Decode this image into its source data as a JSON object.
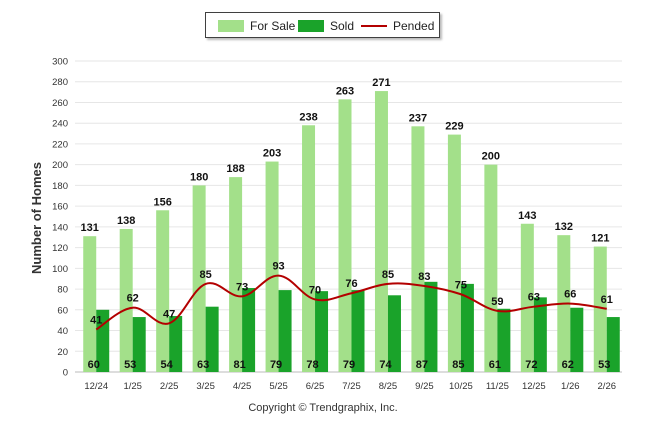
{
  "chart_data": {
    "type": "bar",
    "title": "",
    "xlabel": "",
    "ylabel": "Number of Homes",
    "ylim": [
      0,
      300
    ],
    "yticks": [
      0,
      20,
      40,
      60,
      80,
      100,
      120,
      140,
      160,
      180,
      200,
      220,
      240,
      260,
      280,
      300
    ],
    "categories": [
      "12/24",
      "1/25",
      "2/25",
      "3/25",
      "4/25",
      "5/25",
      "6/25",
      "7/25",
      "8/25",
      "9/25",
      "10/25",
      "11/25",
      "12/25",
      "1/26",
      "2/26"
    ],
    "series": [
      {
        "name": "For Sale",
        "kind": "bar",
        "color": "#a3e08a",
        "values": [
          131,
          138,
          156,
          180,
          188,
          203,
          238,
          263,
          271,
          237,
          229,
          200,
          143,
          132,
          121
        ]
      },
      {
        "name": "Sold",
        "kind": "bar",
        "color": "#1aa32a",
        "values": [
          60,
          53,
          54,
          63,
          81,
          79,
          78,
          79,
          74,
          87,
          85,
          61,
          72,
          62,
          53
        ]
      },
      {
        "name": "Pended",
        "kind": "line",
        "color": "#b30000",
        "values": [
          41,
          62,
          47,
          85,
          73,
          93,
          70,
          76,
          85,
          83,
          75,
          59,
          63,
          66,
          61
        ]
      }
    ],
    "legend_position": "top-center"
  },
  "legend": {
    "for_sale": "For Sale",
    "sold": "Sold",
    "pended": "Pended"
  },
  "footer": {
    "copyright": "Copyright © Trendgraphix, Inc."
  }
}
